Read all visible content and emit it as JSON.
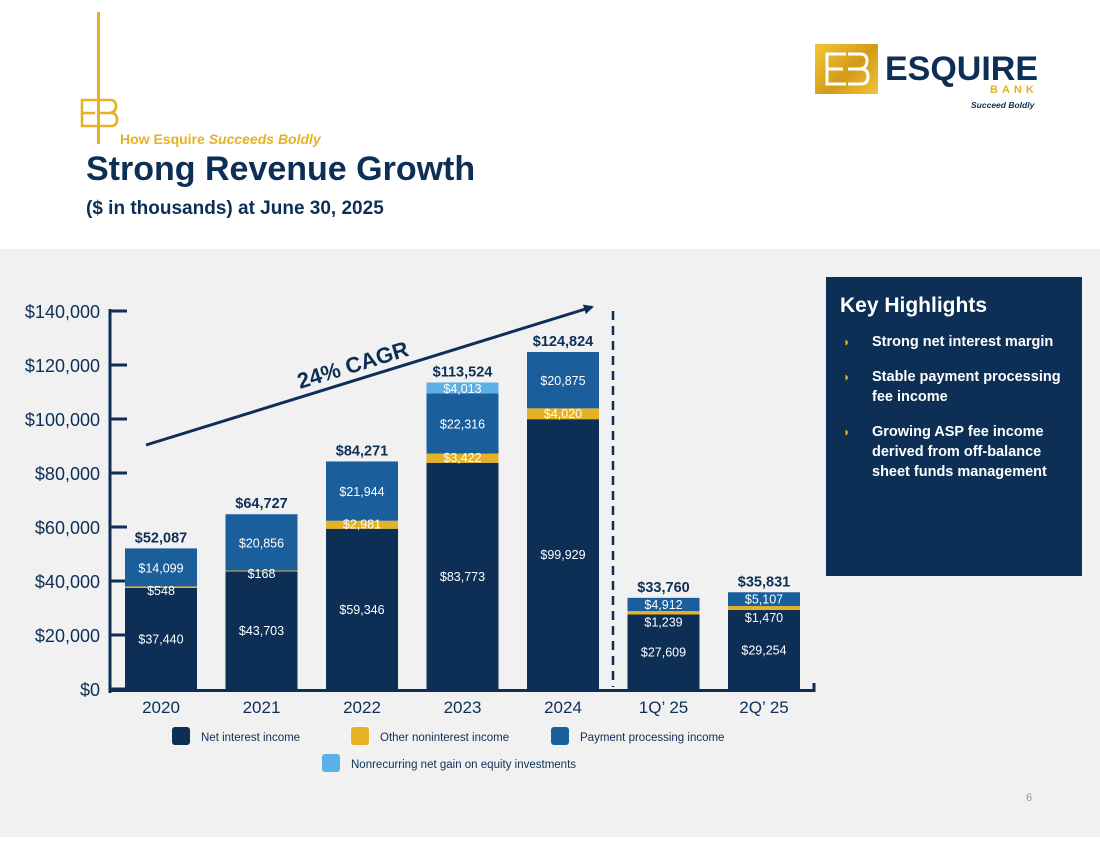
{
  "header": {
    "tagline_prefix": "How Esquire",
    "tagline_emphasis": "Succeeds Boldly",
    "title": "Strong Revenue Growth",
    "subtitle": "($ in thousands) at June 30, 2025"
  },
  "logo": {
    "mark_text": "EB",
    "name": "ESQUIRE",
    "bank": "BANK",
    "slogan": "Succeed Boldly"
  },
  "highlights": {
    "title": "Key Highlights",
    "bullet_icon": "half-circle-bullet-icon",
    "items": [
      "Strong net interest margin",
      "Stable payment processing fee income",
      "Growing ASP fee income derived from off-balance sheet funds management"
    ]
  },
  "page_number": "6",
  "colors": {
    "navy": "#0D2F56",
    "gold": "#E5B226",
    "blue": "#1B5E9C",
    "light_blue": "#5BB0E6",
    "band": "#F1F1F2"
  },
  "chart_data": {
    "type": "bar",
    "stacked": true,
    "title": "Strong Revenue Growth",
    "ylabel": "($ in thousands)",
    "ylim": [
      0,
      140000
    ],
    "yticks": [
      0,
      20000,
      40000,
      60000,
      80000,
      100000,
      120000,
      140000
    ],
    "ytick_labels": [
      "$0",
      "$20,000",
      "$40,000",
      "$60,000",
      "$80,000",
      "$100,000",
      "$120,000",
      "$140,000"
    ],
    "categories": [
      "2020",
      "2021",
      "2022",
      "2023",
      "2024",
      "1Q’ 25",
      "2Q’ 25"
    ],
    "series": [
      {
        "name": "Net interest income",
        "color": "#0D2F56",
        "values": [
          37440,
          43703,
          59346,
          83773,
          99929,
          27609,
          29254
        ],
        "labels": [
          "$37,440",
          "$43,703",
          "$59,346",
          "$83,773",
          "$99,929",
          "$27,609",
          "$29,254"
        ]
      },
      {
        "name": "Other noninterest income",
        "color": "#E5B226",
        "values": [
          548,
          168,
          2981,
          3422,
          4020,
          1239,
          1470
        ],
        "labels": [
          "$548",
          "$168",
          "$2,981",
          "$3,422",
          "$4,020",
          "$1,239",
          "$1,470"
        ]
      },
      {
        "name": "Payment processing income",
        "color": "#1B5E9C",
        "values": [
          14099,
          20856,
          21944,
          22316,
          20875,
          4912,
          5107
        ],
        "labels": [
          "$14,099",
          "$20,856",
          "$21,944",
          "$22,316",
          "$20,875",
          "$4,912",
          "$5,107"
        ]
      },
      {
        "name": "Nonrecurring net gain on equity investments",
        "color": "#5BB0E6",
        "values": [
          0,
          0,
          0,
          4013,
          0,
          0,
          0
        ],
        "labels": [
          "",
          "",
          "",
          "$4,013",
          "",
          "",
          ""
        ]
      }
    ],
    "totals": [
      52087,
      64727,
      84271,
      113524,
      124824,
      33760,
      35831
    ],
    "total_labels": [
      "$52,087",
      "$64,727",
      "$84,271",
      "$113,524",
      "$124,824",
      "$33,760",
      "$35,831"
    ],
    "annotation": "24% CAGR",
    "divider_after_category": "2024",
    "legend_position": "bottom"
  }
}
